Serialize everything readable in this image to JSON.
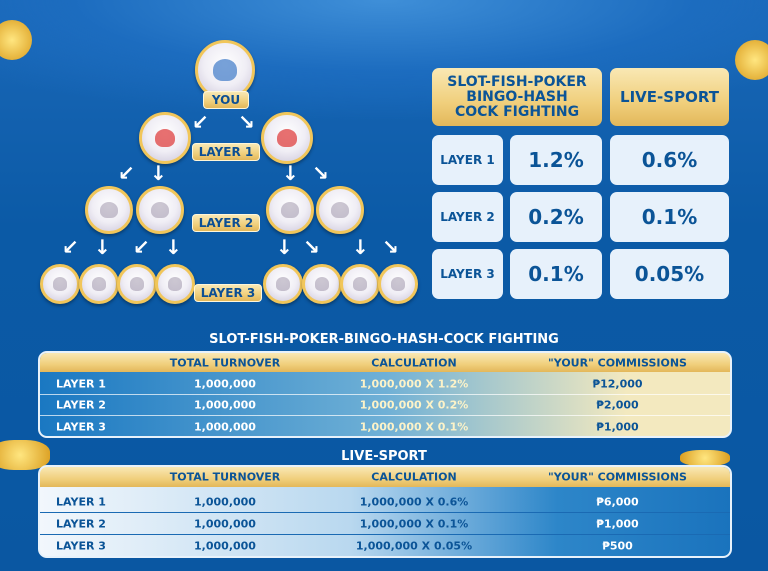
{
  "tree": {
    "you_label": "YOU",
    "layer1_label": "LAYER 1",
    "layer2_label": "LAYER 2",
    "layer3_label": "LAYER 3"
  },
  "rates": {
    "headers": [
      "SLOT-FISH-POKER\nBINGO-HASH\nCOCK FIGHTING",
      "LIVE-SPORT"
    ],
    "header_lines": [
      "SLOT-FISH-POKER",
      "BINGO-HASH",
      "COCK FIGHTING"
    ],
    "rows": [
      {
        "label": "LAYER 1",
        "slot": "1.2%",
        "sport": "0.6%"
      },
      {
        "label": "LAYER 2",
        "slot": "0.2%",
        "sport": "0.1%"
      },
      {
        "label": "LAYER 3",
        "slot": "0.1%",
        "sport": "0.05%"
      }
    ]
  },
  "table1": {
    "title": "SLOT-FISH-POKER-BINGO-HASH-COCK FIGHTING",
    "columns": [
      "",
      "TOTAL TURNOVER",
      "CALCULATION",
      "\"YOUR\" COMMISSIONS"
    ],
    "rows": [
      [
        "LAYER 1",
        "1,000,000",
        "1,000,000 X 1.2%",
        "₱12,000"
      ],
      [
        "LAYER 2",
        "1,000,000",
        "1,000,000 X 0.2%",
        "₱2,000"
      ],
      [
        "LAYER 3",
        "1,000,000",
        "1,000,000 X 0.1%",
        "₱1,000"
      ]
    ]
  },
  "table2": {
    "title": "LIVE-SPORT",
    "columns": [
      "",
      "TOTAL TURNOVER",
      "CALCULATION",
      "\"YOUR\" COMMISSIONS"
    ],
    "rows": [
      [
        "LAYER 1",
        "1,000,000",
        "1,000,000 X 0.6%",
        "₱6,000"
      ],
      [
        "LAYER 2",
        "1,000,000",
        "1,000,000 X 0.1%",
        "₱1,000"
      ],
      [
        "LAYER 3",
        "1,000,000",
        "1,000,000 X 0.05%",
        "₱500"
      ]
    ]
  },
  "colors": {
    "background": "#0a57a2",
    "gold": "#f0cf7c",
    "text_blue": "#0b5497"
  }
}
